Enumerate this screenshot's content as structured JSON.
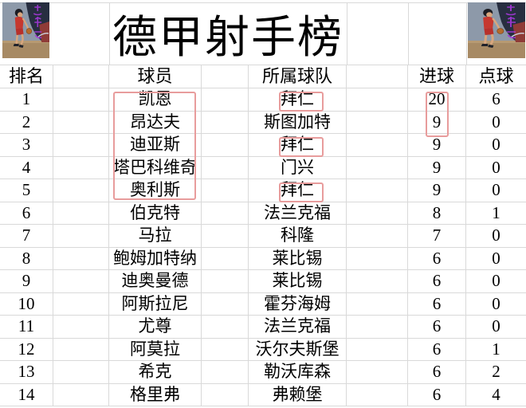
{
  "title": "德甲射手榜",
  "columns": [
    "排名",
    "球员",
    "所属球队",
    "进球",
    "点球"
  ],
  "rows": [
    {
      "rank": "1",
      "player": "凯恩",
      "team": "拜仁",
      "goals": "20",
      "penalties": "6"
    },
    {
      "rank": "2",
      "player": "昂达夫",
      "team": "斯图加特",
      "goals": "9",
      "penalties": "0"
    },
    {
      "rank": "3",
      "player": "迪亚斯",
      "team": "拜仁",
      "goals": "9",
      "penalties": "0"
    },
    {
      "rank": "4",
      "player": "塔巴科维奇",
      "team": "门兴",
      "goals": "9",
      "penalties": "0"
    },
    {
      "rank": "5",
      "player": "奥利斯",
      "team": "拜仁",
      "goals": "9",
      "penalties": "0"
    },
    {
      "rank": "6",
      "player": "伯克特",
      "team": "法兰克福",
      "goals": "8",
      "penalties": "1"
    },
    {
      "rank": "7",
      "player": "马拉",
      "team": "科隆",
      "goals": "7",
      "penalties": "0"
    },
    {
      "rank": "8",
      "player": "鲍姆加特纳",
      "team": "莱比锡",
      "goals": "6",
      "penalties": "0"
    },
    {
      "rank": "9",
      "player": "迪奥曼德",
      "team": "莱比锡",
      "goals": "6",
      "penalties": "0"
    },
    {
      "rank": "10",
      "player": "阿斯拉尼",
      "team": "霍芬海姆",
      "goals": "6",
      "penalties": "0"
    },
    {
      "rank": "11",
      "player": "尤尊",
      "team": "法兰克福",
      "goals": "6",
      "penalties": "0"
    },
    {
      "rank": "12",
      "player": "阿莫拉",
      "team": "沃尔夫斯堡",
      "goals": "6",
      "penalties": "1"
    },
    {
      "rank": "13",
      "player": "希克",
      "team": "勒沃库森",
      "goals": "6",
      "penalties": "2"
    },
    {
      "rank": "14",
      "player": "格里弗",
      "team": "弗赖堡",
      "goals": "6",
      "penalties": "4"
    }
  ],
  "annotations": {
    "player_names_box": {
      "column": "球员",
      "rows": "1-5"
    },
    "team_boxes": {
      "column": "所属球队",
      "rows": "1,3,5",
      "highlighted_value": "拜仁"
    },
    "goals_box": {
      "column": "进球",
      "rows": "1-2",
      "highlighted_values": "20,9"
    }
  },
  "images": {
    "left": "slam-dunk-basketball-art",
    "right": "slam-dunk-basketball-art"
  },
  "colors": {
    "annotation_red": "#e89c9c",
    "gridline_gray": "#d9d9d9",
    "watermark_purple": "#a438d8",
    "text": "#000000",
    "background": "#ffffff"
  }
}
